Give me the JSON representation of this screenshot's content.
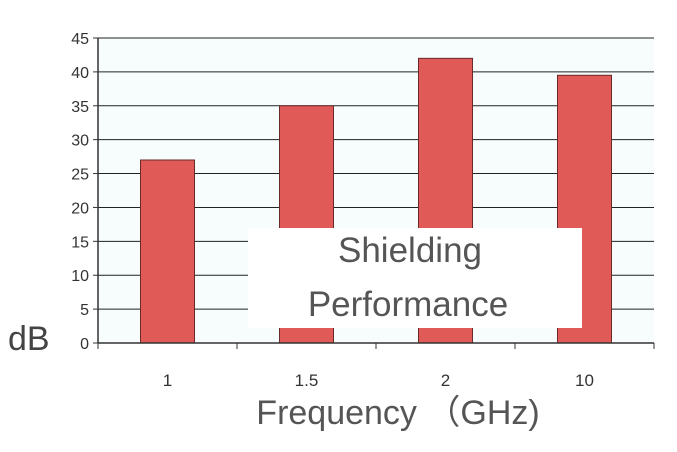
{
  "chart_data": {
    "type": "bar",
    "categories": [
      "1",
      "1.5",
      "2",
      "10"
    ],
    "values": [
      27,
      35,
      42,
      39.5
    ],
    "xlabel": "Frequency （GHz)",
    "ylabel": "dB",
    "ylim": [
      0,
      45
    ],
    "yticks": [
      0,
      5,
      10,
      15,
      20,
      25,
      30,
      35,
      40,
      45
    ],
    "grid": true,
    "annotation_lines": [
      "Shielding",
      "Performance"
    ],
    "colors": {
      "bar": "#e05a58",
      "bar_edge": "#6b2a2a",
      "plot_background": "#f7fcfc",
      "gridline": "#222222",
      "axis": "#333333"
    }
  }
}
